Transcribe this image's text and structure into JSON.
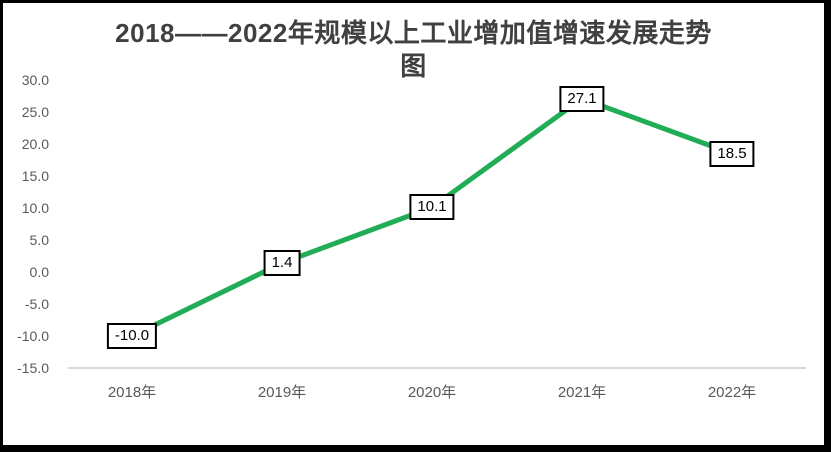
{
  "header": {
    "title_line1": "2018——2022年规模以上工业增加值增速发展走势",
    "title_line2": "图",
    "title_color": "#404040"
  },
  "chart_data": {
    "type": "line",
    "title": "2018——2022年规模以上工业增加值增速发展走势图",
    "categories": [
      "2018年",
      "2019年",
      "2020年",
      "2021年",
      "2022年"
    ],
    "values": [
      -10.0,
      1.4,
      10.1,
      27.1,
      18.5
    ],
    "data_labels": [
      "-10.0",
      "1.4",
      "10.1",
      "27.1",
      "18.5"
    ],
    "y_ticks": [
      "30.0",
      "25.0",
      "20.0",
      "15.0",
      "10.0",
      "5.0",
      "0.0",
      "-5.0",
      "-10.0",
      "-15.0"
    ],
    "ylim": [
      -15,
      30
    ],
    "xlabel": "",
    "ylabel": "",
    "grid": false,
    "legend": "none",
    "line_color": "#21AC56",
    "axis_line_color": "#d9d9d9",
    "tick_label_color": "#595959",
    "label_box_fill": "#ffffff",
    "label_box_border": "#000000",
    "label_text_color": "#000000"
  }
}
